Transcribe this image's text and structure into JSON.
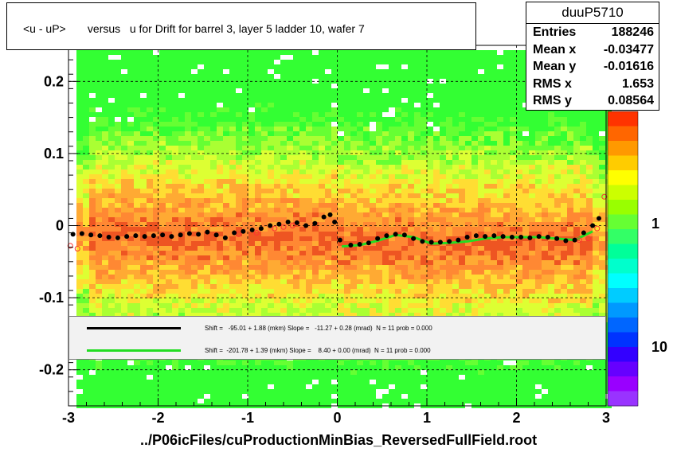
{
  "title": "<u - uP>       versus   u for Drift for barrel 3, layer 5 ladder 10, wafer 7",
  "stats": {
    "name": "duuP5710",
    "rows": [
      {
        "label": "Entries",
        "value": "188246"
      },
      {
        "label": "Mean x",
        "value": "-0.03477"
      },
      {
        "label": "Mean y",
        "value": "-0.01616"
      },
      {
        "label": "RMS x",
        "value": "1.653"
      },
      {
        "label": "RMS y",
        "value": "0.08564"
      }
    ]
  },
  "legend": [
    {
      "color": "#000000",
      "text": "Shift =   -95.01 + 1.88 (mkm) Slope =   -11.27 + 0.28 (mrad)  N = 11 prob = 0.000"
    },
    {
      "color": "#22dd22",
      "text": "Shift =  -201.78 + 1.39 (mkm) Slope =    8.40 + 0.00 (mrad)  N = 11 prob = 0.000"
    }
  ],
  "x_axis_label": "../P06icFiles/cuProductionMinBias_ReversedFullField.root",
  "palette_labels": [
    "1",
    "10"
  ],
  "colors": {
    "dense": "#e8361a",
    "medium": "#ff9933",
    "light": "#aaff33",
    "sparse": "#33ff33",
    "profile_black": "#000000",
    "fit_green": "#22dd22",
    "profile_red": "#ff3333"
  },
  "chart_data": {
    "type": "heatmap",
    "title": "<u - uP>       versus   u for Drift for barrel 3, layer 5 ladder 10, wafer 7",
    "xlabel": "../P06icFiles/cuProductionMinBias_ReversedFullField.root",
    "ylabel": "",
    "xlim": [
      -3,
      3
    ],
    "ylim": [
      -0.25,
      0.25
    ],
    "x_ticks": [
      -3,
      -2,
      -1,
      0,
      1,
      2,
      3
    ],
    "y_ticks": [
      -0.2,
      -0.1,
      0,
      0.1,
      0.2
    ],
    "x_tick_labels": [
      "-3",
      "-2",
      "-1",
      "0",
      "1",
      "2",
      "3"
    ],
    "y_tick_labels": [
      "-0.2",
      "-0.1",
      "0",
      "0.1",
      "0.2"
    ],
    "grid": true,
    "log_z": true,
    "series": [
      {
        "name": "",
        "style": "black-markers",
        "x": [
          -2.95,
          -2.85,
          -2.75,
          -2.65,
          -2.55,
          -2.45,
          -2.35,
          -2.25,
          -2.15,
          -2.05,
          -1.95,
          -1.85,
          -1.75,
          -1.65,
          -1.55,
          -1.45,
          -1.35,
          -1.25,
          -1.15,
          -1.05,
          -0.95,
          -0.85,
          -0.75,
          -0.65,
          -0.55,
          -0.45,
          -0.35,
          -0.25,
          -0.15,
          -0.08,
          -0.03,
          0.03,
          0.15,
          0.25,
          0.35,
          0.45,
          0.55,
          0.65,
          0.75,
          0.85,
          0.95,
          1.05,
          1.15,
          1.25,
          1.35,
          1.45,
          1.55,
          1.65,
          1.75,
          1.85,
          1.95,
          2.05,
          2.15,
          2.25,
          2.35,
          2.45,
          2.55,
          2.65,
          2.75,
          2.85,
          2.92
        ],
        "y": [
          -0.012,
          -0.011,
          -0.013,
          -0.014,
          -0.016,
          -0.017,
          -0.015,
          -0.014,
          -0.015,
          -0.014,
          -0.013,
          -0.015,
          -0.013,
          -0.011,
          -0.012,
          -0.009,
          -0.013,
          -0.017,
          -0.01,
          -0.008,
          -0.006,
          -0.004,
          0.0,
          0.002,
          0.005,
          0.004,
          0.0,
          0.003,
          0.012,
          0.015,
          0.005,
          -0.02,
          -0.027,
          -0.026,
          -0.024,
          -0.018,
          -0.014,
          -0.012,
          -0.013,
          -0.018,
          -0.022,
          -0.023,
          -0.023,
          -0.022,
          -0.02,
          -0.016,
          -0.014,
          -0.015,
          -0.014,
          -0.015,
          -0.016,
          -0.016,
          -0.017,
          -0.015,
          -0.016,
          -0.018,
          -0.021,
          -0.02,
          -0.01,
          0.0,
          0.01
        ]
      },
      {
        "name": "",
        "style": "green-fit",
        "x": [
          0.05,
          0.25,
          0.45,
          0.65,
          0.85,
          1.05,
          1.25,
          1.45,
          1.65,
          1.85,
          2.05,
          2.25,
          2.45,
          2.65,
          2.85
        ],
        "y": [
          -0.029,
          -0.027,
          -0.021,
          -0.013,
          -0.016,
          -0.025,
          -0.024,
          -0.022,
          -0.018,
          -0.016,
          -0.016,
          -0.016,
          -0.018,
          -0.02,
          -0.008
        ]
      },
      {
        "name": "",
        "style": "red-markers",
        "x": [
          -2.98,
          -2.9,
          -1.1,
          -0.9,
          -0.7,
          -0.6,
          -0.5,
          2.7,
          2.8,
          2.9,
          2.98
        ],
        "y": [
          -0.028,
          -0.032,
          -0.012,
          -0.01,
          -0.004,
          -0.002,
          0.0,
          -0.02,
          -0.018,
          -0.004,
          0.04
        ]
      }
    ]
  }
}
